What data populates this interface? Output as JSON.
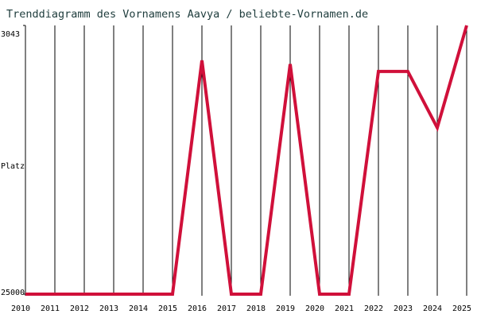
{
  "chart_data": {
    "type": "line",
    "title": "Trenddiagramm des Vornamens Aavya / beliebte-Vornamen.de",
    "y_label": "Platz",
    "x": [
      2010,
      2011,
      2012,
      2013,
      2014,
      2015,
      2016,
      2017,
      2018,
      2019,
      2020,
      2021,
      2022,
      2023,
      2024,
      2025
    ],
    "series": [
      {
        "color": "#d0103a",
        "values": [
          25000,
          25000,
          25000,
          25000,
          25000,
          25000,
          5900,
          25000,
          25000,
          6200,
          25000,
          25000,
          6800,
          6800,
          11400,
          3043
        ]
      }
    ],
    "xlim": [
      2010,
      2025
    ],
    "xticks": [
      2010,
      2011,
      2012,
      2013,
      2014,
      2015,
      2016,
      2017,
      2018,
      2019,
      2020,
      2021,
      2022,
      2023,
      2024,
      2025
    ],
    "ylim": [
      25000,
      3043
    ],
    "yticks": [
      3043,
      25000
    ],
    "grid": true,
    "grid_color": "#000000"
  }
}
